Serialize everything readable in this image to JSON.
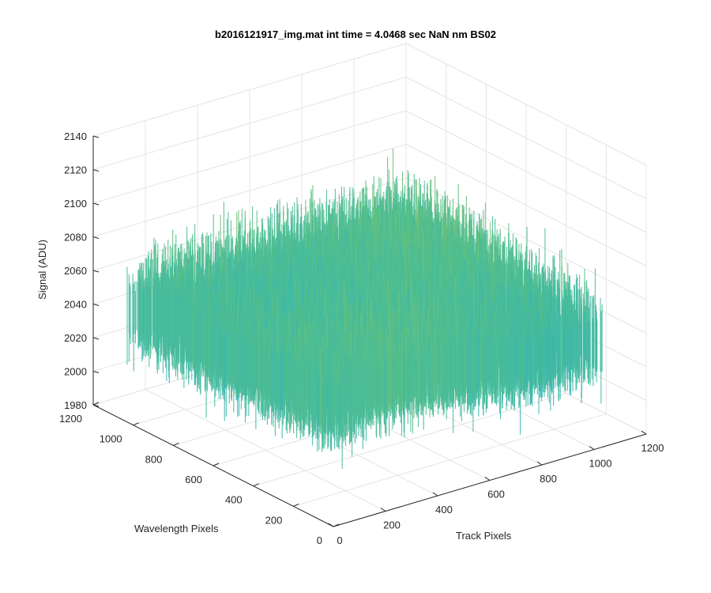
{
  "chart_data": {
    "type": "surface3d",
    "title": "b2016121917_img.mat int time = 4.0468 sec  NaN nm BS02",
    "xlabel": "Track Pixels",
    "ylabel": "Wavelength Pixels",
    "zlabel": "Signal (ADU)",
    "xlim": [
      0,
      1200
    ],
    "ylim": [
      0,
      1200
    ],
    "zlim": [
      1980,
      2140
    ],
    "x_ticks": [
      "0",
      "200",
      "400",
      "600",
      "800",
      "1000",
      "1200"
    ],
    "y_ticks": [
      "0",
      "200",
      "400",
      "600",
      "800",
      "1000",
      "1200"
    ],
    "z_ticks": [
      "1980",
      "2000",
      "2020",
      "2040",
      "2060",
      "2080",
      "2100",
      "2120",
      "2140"
    ],
    "surface": {
      "x_extent": [
        0,
        1024
      ],
      "y_extent": [
        0,
        1024
      ],
      "mean_signal": 2045,
      "min_signal": 1985,
      "max_signal": 2133
    },
    "grid": true,
    "colormap": [
      "#0f8fd6",
      "#2bb2c2",
      "#54bf8a",
      "#b8c94c",
      "#e6cf3a"
    ]
  }
}
